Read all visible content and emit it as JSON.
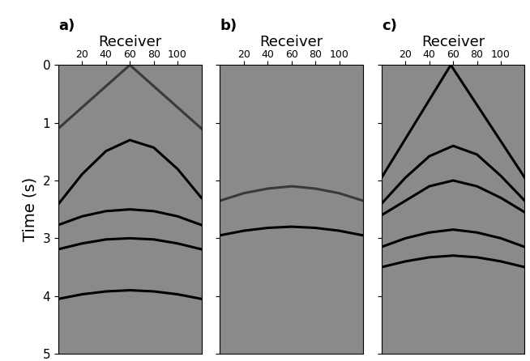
{
  "chart_data": [
    {
      "type": "line",
      "title": "a)",
      "xlabel": "Receiver",
      "ylabel": "Time (s)",
      "xlim": [
        0,
        120
      ],
      "ylim": [
        5,
        0
      ],
      "xticks": [
        20,
        40,
        60,
        80,
        100
      ],
      "yticks": [
        0,
        1,
        2,
        3,
        4,
        5
      ],
      "series": [
        {
          "color": "#000000",
          "x": [
            0,
            20,
            40,
            60,
            80,
            100,
            120
          ],
          "values": [
            2.41,
            1.89,
            1.49,
            1.3,
            1.43,
            1.8,
            2.3
          ]
        },
        {
          "color": "#000000",
          "x": [
            0,
            20,
            40,
            60,
            80,
            100,
            120
          ],
          "values": [
            2.77,
            2.62,
            2.53,
            2.5,
            2.53,
            2.62,
            2.77
          ]
        },
        {
          "color": "#000000",
          "x": [
            0,
            20,
            40,
            60,
            80,
            100,
            120
          ],
          "values": [
            3.19,
            3.09,
            3.02,
            3.0,
            3.02,
            3.09,
            3.19
          ]
        },
        {
          "color": "#000000",
          "x": [
            0,
            20,
            40,
            60,
            80,
            100,
            120
          ],
          "values": [
            4.05,
            3.97,
            3.92,
            3.9,
            3.92,
            3.97,
            4.05
          ]
        },
        {
          "color": "#3a3a3a",
          "x": [
            0,
            60,
            120
          ],
          "values": [
            1.1,
            0.0,
            1.1
          ]
        }
      ]
    },
    {
      "type": "line",
      "title": "b)",
      "xlabel": "Receiver",
      "xlim": [
        0,
        120
      ],
      "ylim": [
        5,
        0
      ],
      "xticks": [
        20,
        40,
        60,
        80,
        100
      ],
      "yticks": [
        0,
        1,
        2,
        3,
        4,
        5
      ],
      "tick_labels": "x",
      "series": [
        {
          "color": "#3a3a3a",
          "x": [
            0,
            20,
            40,
            60,
            80,
            100,
            120
          ],
          "values": [
            2.35,
            2.22,
            2.14,
            2.1,
            2.14,
            2.22,
            2.35
          ]
        },
        {
          "color": "#000000",
          "x": [
            0,
            20,
            40,
            60,
            80,
            100,
            120
          ],
          "values": [
            2.95,
            2.87,
            2.82,
            2.8,
            2.82,
            2.87,
            2.95
          ]
        }
      ]
    },
    {
      "type": "line",
      "title": "c)",
      "xlabel": "Receiver",
      "xlim": [
        0,
        120
      ],
      "ylim": [
        5,
        0
      ],
      "xticks": [
        20,
        40,
        60,
        80,
        100
      ],
      "yticks": [
        0,
        1,
        2,
        3,
        4,
        5
      ],
      "tick_labels": "x",
      "series": [
        {
          "color": "#000000",
          "x": [
            0,
            58,
            120
          ],
          "values": [
            1.95,
            0.0,
            1.95
          ]
        },
        {
          "color": "#000000",
          "x": [
            0,
            20,
            40,
            60,
            80,
            100,
            120
          ],
          "values": [
            2.4,
            1.95,
            1.58,
            1.4,
            1.55,
            1.92,
            2.35
          ]
        },
        {
          "color": "#000000",
          "x": [
            0,
            20,
            40,
            60,
            80,
            100,
            120
          ],
          "values": [
            2.6,
            2.35,
            2.1,
            2.0,
            2.1,
            2.3,
            2.55
          ]
        },
        {
          "color": "#000000",
          "x": [
            0,
            20,
            40,
            60,
            80,
            100,
            120
          ],
          "values": [
            3.15,
            3.0,
            2.9,
            2.85,
            2.9,
            3.0,
            3.15
          ]
        },
        {
          "color": "#000000",
          "x": [
            0,
            20,
            40,
            60,
            80,
            100,
            120
          ],
          "values": [
            3.5,
            3.4,
            3.33,
            3.3,
            3.33,
            3.4,
            3.5
          ]
        }
      ]
    }
  ]
}
